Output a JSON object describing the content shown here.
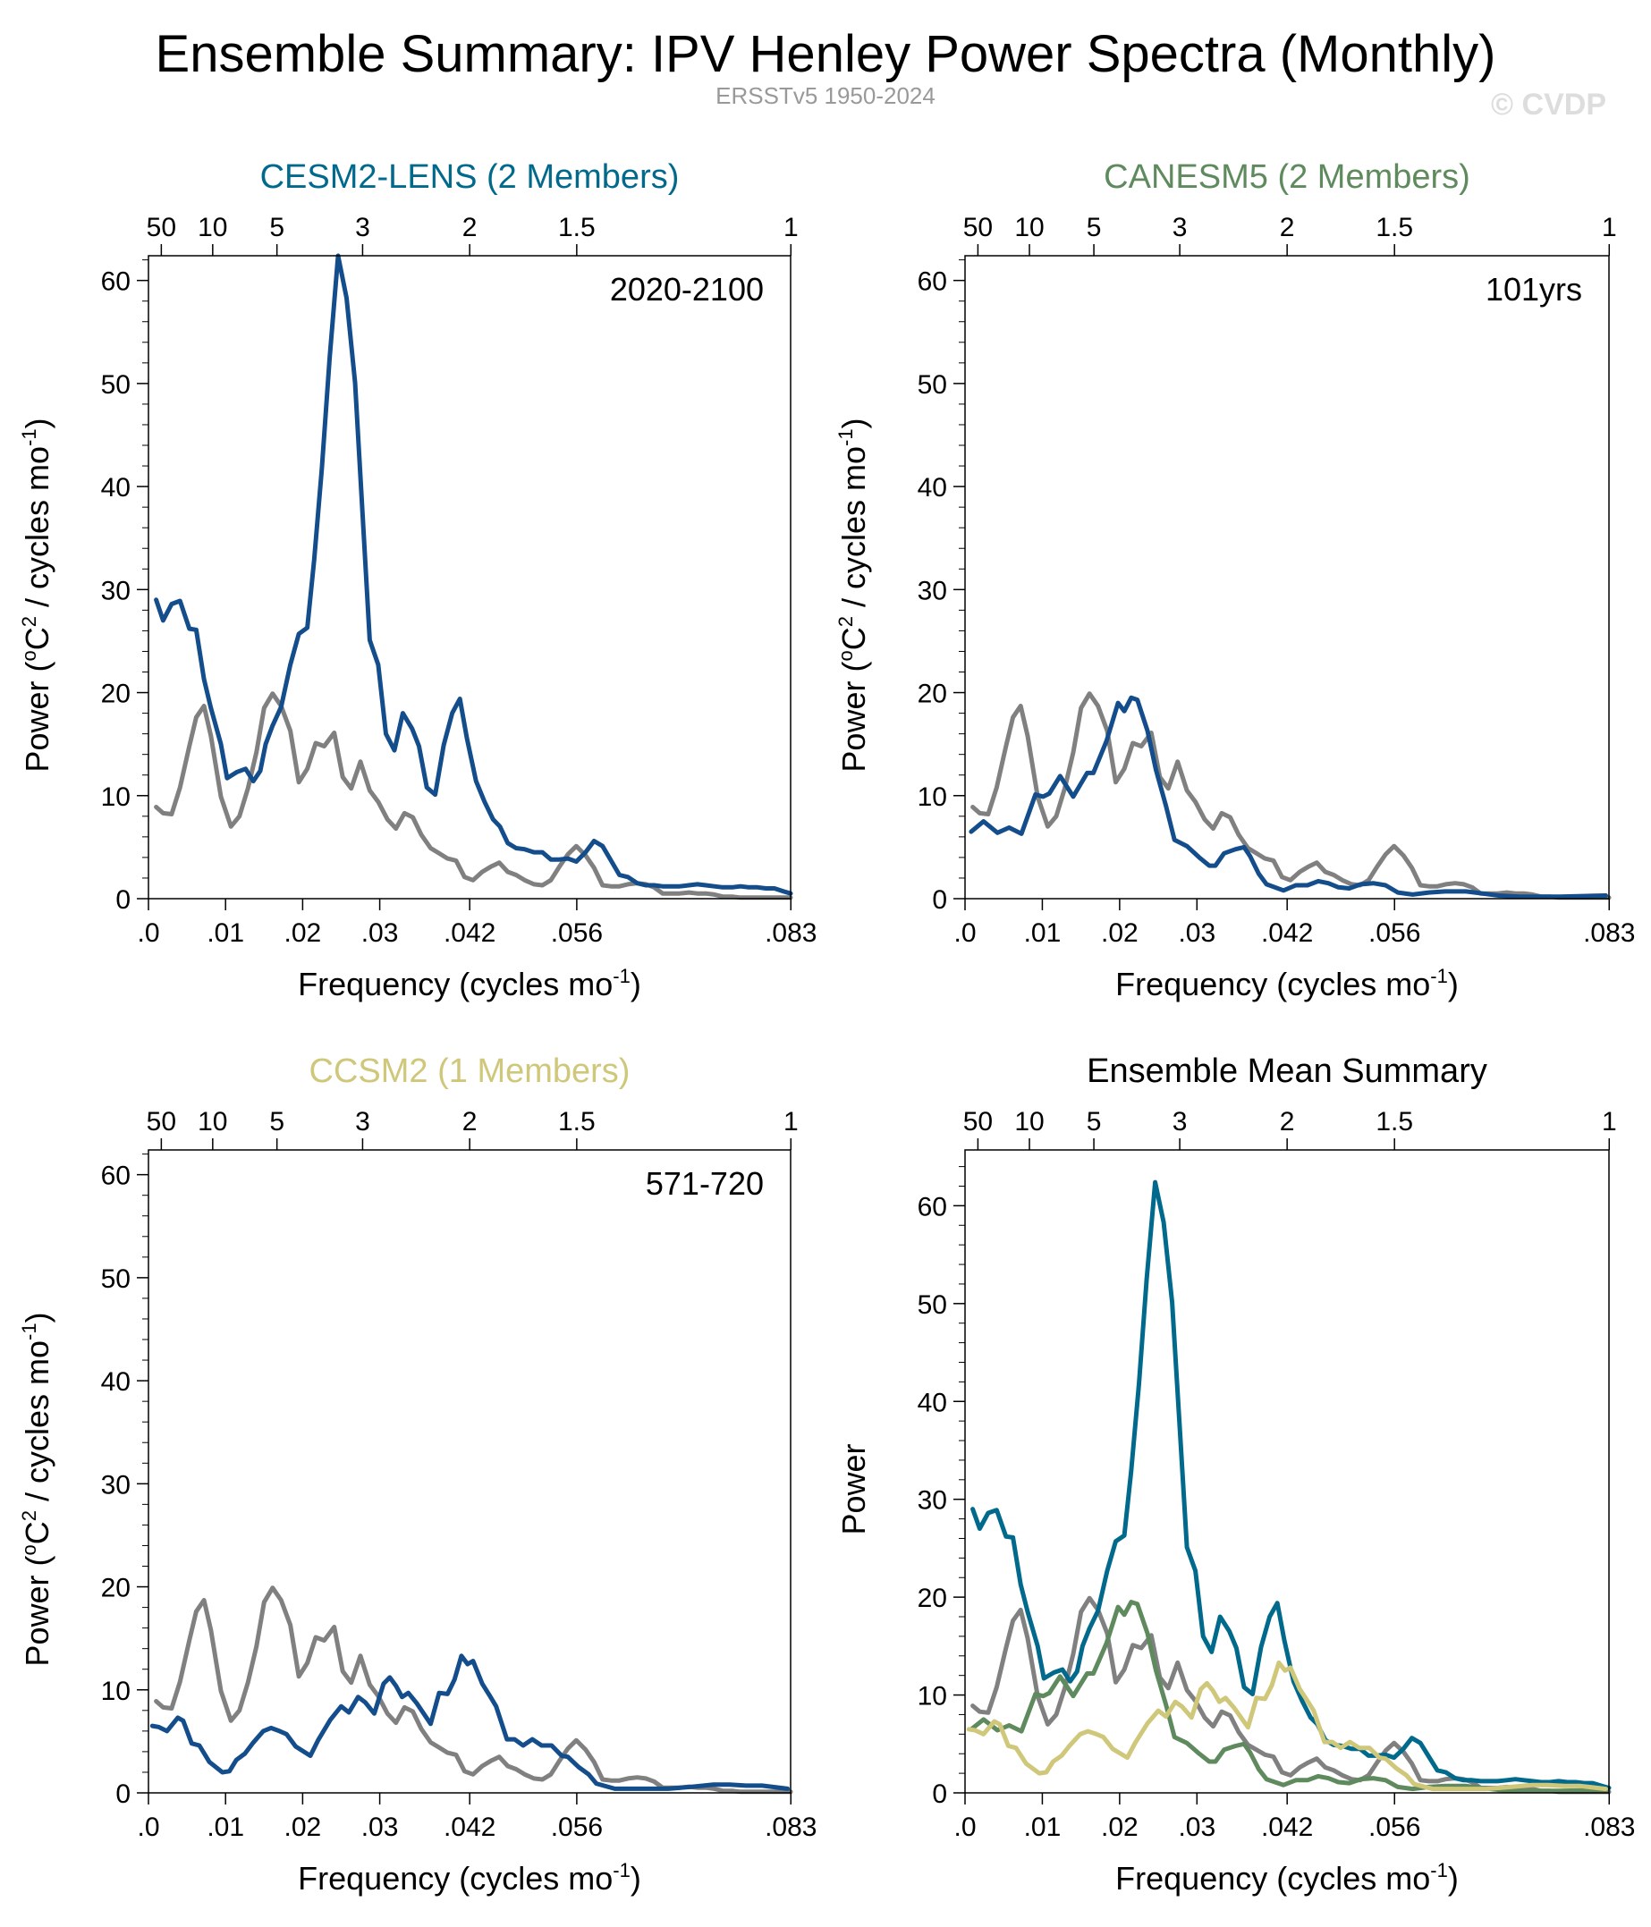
{
  "header": {
    "title": "Ensemble Summary: IPV Henley Power Spectra (Monthly)",
    "subtitle": "ERSSTv5 1950-2024",
    "watermark": "© CVDP"
  },
  "chart_data": {
    "type": "line",
    "series_data": {
      "observations": {
        "color": "#808080",
        "x": [
          0.001,
          0.0019,
          0.003,
          0.0041,
          0.0053,
          0.0062,
          0.0072,
          0.0081,
          0.0094,
          0.0107,
          0.0118,
          0.0129,
          0.014,
          0.015,
          0.0161,
          0.0172,
          0.0184,
          0.0195,
          0.0206,
          0.0217,
          0.0228,
          0.0241,
          0.0252,
          0.0263,
          0.0275,
          0.0287,
          0.0298,
          0.031,
          0.0321,
          0.0332,
          0.0343,
          0.0354,
          0.0366,
          0.0377,
          0.0388,
          0.0399,
          0.041,
          0.0421,
          0.0433,
          0.0444,
          0.0455,
          0.0466,
          0.0477,
          0.0488,
          0.05,
          0.0511,
          0.0522,
          0.0533,
          0.0544,
          0.0555,
          0.0567,
          0.0578,
          0.0589,
          0.06,
          0.0611,
          0.0622,
          0.0634,
          0.0645,
          0.0656,
          0.0667,
          0.0678,
          0.0689,
          0.0701,
          0.0712,
          0.0723,
          0.0734,
          0.0745,
          0.0757,
          0.0768,
          0.0779,
          0.079,
          0.0801,
          0.0812,
          0.0824,
          0.0833
        ],
        "y": [
          8.9,
          8.3,
          8.2,
          10.8,
          14.8,
          17.6,
          18.7,
          15.8,
          9.9,
          7.0,
          8.0,
          10.7,
          14.2,
          18.5,
          19.9,
          18.7,
          16.3,
          11.3,
          12.6,
          15.1,
          14.8,
          16.1,
          11.8,
          10.7,
          13.3,
          10.5,
          9.4,
          7.7,
          6.8,
          8.3,
          7.9,
          6.2,
          4.9,
          4.4,
          3.9,
          3.7,
          2.1,
          1.8,
          2.6,
          3.1,
          3.5,
          2.6,
          2.3,
          1.8,
          1.4,
          1.3,
          1.8,
          3.1,
          4.3,
          5.1,
          4.2,
          3.0,
          1.3,
          1.2,
          1.2,
          1.4,
          1.5,
          1.4,
          1.1,
          0.5,
          0.5,
          0.5,
          0.6,
          0.5,
          0.5,
          0.4,
          0.2,
          0.2,
          0.1,
          0.1,
          0.1,
          0.1,
          0.1,
          0.1,
          0.1
        ]
      },
      "cesm2_lens": {
        "x": [
          0.001,
          0.0019,
          0.003,
          0.0041,
          0.0053,
          0.0062,
          0.0072,
          0.0081,
          0.0094,
          0.0102,
          0.0115,
          0.0126,
          0.0136,
          0.0145,
          0.0152,
          0.0161,
          0.0172,
          0.0184,
          0.0195,
          0.0206,
          0.0215,
          0.0225,
          0.0235,
          0.0246,
          0.0257,
          0.0268,
          0.0278,
          0.0287,
          0.0298,
          0.0308,
          0.0319,
          0.033,
          0.0342,
          0.0351,
          0.0361,
          0.0372,
          0.0383,
          0.0394,
          0.0404,
          0.0413,
          0.0425,
          0.0436,
          0.0447,
          0.0456,
          0.0466,
          0.0477,
          0.0488,
          0.05,
          0.0511,
          0.0522,
          0.0533,
          0.0544,
          0.0555,
          0.0567,
          0.0578,
          0.0589,
          0.06,
          0.0611,
          0.0622,
          0.0634,
          0.0645,
          0.0656,
          0.0667,
          0.0678,
          0.0689,
          0.0701,
          0.0712,
          0.0723,
          0.0734,
          0.0745,
          0.0757,
          0.0768,
          0.0779,
          0.079,
          0.0801,
          0.0812,
          0.0824,
          0.0833
        ],
        "y": [
          29.0,
          27.0,
          28.6,
          28.9,
          26.2,
          26.1,
          21.3,
          18.5,
          15.0,
          11.7,
          12.3,
          12.6,
          11.4,
          12.4,
          15.0,
          16.8,
          18.6,
          22.7,
          25.7,
          26.3,
          32.9,
          41.8,
          52.5,
          62.4,
          58.3,
          50.1,
          37.0,
          25.1,
          22.7,
          16.0,
          14.4,
          18.0,
          16.5,
          14.8,
          10.8,
          10.1,
          14.9,
          18.0,
          19.4,
          15.6,
          11.4,
          9.4,
          7.7,
          7.0,
          5.4,
          4.9,
          4.8,
          4.5,
          4.5,
          3.8,
          3.8,
          3.9,
          3.6,
          4.5,
          5.6,
          5.1,
          3.7,
          2.3,
          2.1,
          1.5,
          1.3,
          1.3,
          1.2,
          1.2,
          1.2,
          1.3,
          1.4,
          1.3,
          1.2,
          1.1,
          1.1,
          1.2,
          1.1,
          1.1,
          1.0,
          1.0,
          0.7,
          0.5
        ]
      },
      "canesm5": {
        "x": [
          0.0008,
          0.0024,
          0.0042,
          0.0057,
          0.0073,
          0.0091,
          0.0101,
          0.0109,
          0.0123,
          0.014,
          0.0158,
          0.0166,
          0.0183,
          0.0198,
          0.0206,
          0.0215,
          0.0223,
          0.0236,
          0.0247,
          0.026,
          0.0271,
          0.0287,
          0.0303,
          0.0316,
          0.0324,
          0.0335,
          0.035,
          0.0361,
          0.0369,
          0.038,
          0.039,
          0.0412,
          0.0428,
          0.0443,
          0.0457,
          0.047,
          0.0483,
          0.0497,
          0.0512,
          0.0528,
          0.0544,
          0.056,
          0.0579,
          0.06,
          0.0621,
          0.0648,
          0.0669,
          0.069,
          0.0717,
          0.077,
          0.0829
        ],
        "y": [
          6.5,
          7.5,
          6.4,
          6.9,
          6.3,
          10.1,
          9.9,
          10.2,
          11.9,
          9.9,
          12.2,
          12.2,
          15.3,
          19.0,
          18.2,
          19.5,
          19.3,
          16.3,
          12.5,
          9.0,
          5.7,
          5.1,
          4.0,
          3.2,
          3.2,
          4.4,
          4.8,
          5.0,
          4.1,
          2.4,
          1.4,
          0.8,
          1.3,
          1.3,
          1.7,
          1.5,
          1.1,
          1.0,
          1.4,
          1.5,
          1.3,
          0.6,
          0.4,
          0.6,
          0.7,
          0.7,
          0.5,
          0.3,
          0.2,
          0.2,
          0.3
        ]
      },
      "ccsm2": {
        "x": [
          0.0005,
          0.0013,
          0.0024,
          0.0038,
          0.0045,
          0.0056,
          0.0066,
          0.0079,
          0.0096,
          0.0105,
          0.0114,
          0.0125,
          0.0135,
          0.0149,
          0.0159,
          0.017,
          0.0179,
          0.0191,
          0.021,
          0.022,
          0.0236,
          0.025,
          0.026,
          0.0272,
          0.0281,
          0.0293,
          0.0305,
          0.0313,
          0.0321,
          0.0329,
          0.0337,
          0.0348,
          0.0366,
          0.0377,
          0.0388,
          0.0397,
          0.0406,
          0.0414,
          0.0421,
          0.0433,
          0.0443,
          0.0451,
          0.0465,
          0.0475,
          0.0486,
          0.0498,
          0.051,
          0.0523,
          0.0536,
          0.0544,
          0.0558,
          0.0571,
          0.0581,
          0.0605,
          0.0637,
          0.0674,
          0.0706,
          0.0733,
          0.0754,
          0.0775,
          0.0796,
          0.0829
        ],
        "y": [
          6.5,
          6.4,
          6.0,
          7.3,
          7.0,
          4.8,
          4.6,
          3.0,
          2.0,
          2.1,
          3.2,
          3.8,
          4.8,
          6.0,
          6.3,
          6.0,
          5.7,
          4.5,
          3.6,
          5.1,
          7.1,
          8.4,
          7.8,
          9.3,
          8.8,
          7.7,
          10.6,
          11.2,
          10.4,
          9.3,
          9.7,
          8.7,
          6.7,
          9.7,
          9.6,
          11.0,
          13.3,
          12.5,
          12.8,
          10.6,
          9.4,
          8.4,
          5.2,
          5.2,
          4.6,
          5.2,
          4.6,
          4.6,
          3.6,
          3.5,
          2.5,
          1.8,
          0.9,
          0.4,
          0.4,
          0.4,
          0.6,
          0.8,
          0.8,
          0.7,
          0.7,
          0.4
        ]
      }
    },
    "panels": [
      {
        "title": "CESM2-LENS (2 Members)",
        "title_color": "#00698c",
        "annotation": "2020-2100",
        "ylabel": [
          {
            "t": "Power ("
          },
          {
            "t": "o",
            "sup": true
          },
          {
            "t": "C"
          },
          {
            "t": "2",
            "sup": true
          },
          {
            "t": " / cycles mo"
          },
          {
            "t": "-1",
            "sup": true
          },
          {
            "t": ")"
          }
        ],
        "xlabel": [
          {
            "t": "Frequency (cycles mo"
          },
          {
            "t": "-1",
            "sup": true
          },
          {
            "t": ")"
          }
        ],
        "xlim": [
          0,
          0.0833
        ],
        "ylim": [
          0,
          62.4
        ],
        "series": [
          {
            "ref": "observations",
            "color": "#808080"
          },
          {
            "ref": "cesm2_lens",
            "color": "#134d8b"
          }
        ]
      },
      {
        "title": "CANESM5 (2 Members)",
        "title_color": "#5e8a5e",
        "annotation": "101yrs",
        "ylabel": [
          {
            "t": "Power ("
          },
          {
            "t": "o",
            "sup": true
          },
          {
            "t": "C"
          },
          {
            "t": "2",
            "sup": true
          },
          {
            "t": " / cycles mo"
          },
          {
            "t": "-1",
            "sup": true
          },
          {
            "t": ")"
          }
        ],
        "xlabel": [
          {
            "t": "Frequency (cycles mo"
          },
          {
            "t": "-1",
            "sup": true
          },
          {
            "t": ")"
          }
        ],
        "xlim": [
          0,
          0.0833
        ],
        "ylim": [
          0,
          62.4
        ],
        "series": [
          {
            "ref": "observations",
            "color": "#808080"
          },
          {
            "ref": "canesm5",
            "color": "#134d8b"
          }
        ]
      },
      {
        "title": "CCSM2 (1 Members)",
        "title_color": "#cfc77a",
        "annotation": "571-720",
        "ylabel": [
          {
            "t": "Power ("
          },
          {
            "t": "o",
            "sup": true
          },
          {
            "t": "C"
          },
          {
            "t": "2",
            "sup": true
          },
          {
            "t": " / cycles mo"
          },
          {
            "t": "-1",
            "sup": true
          },
          {
            "t": ")"
          }
        ],
        "xlabel": [
          {
            "t": "Frequency (cycles mo"
          },
          {
            "t": "-1",
            "sup": true
          },
          {
            "t": ")"
          }
        ],
        "xlim": [
          0,
          0.0833
        ],
        "ylim": [
          0,
          62.4
        ],
        "series": [
          {
            "ref": "observations",
            "color": "#808080"
          },
          {
            "ref": "ccsm2",
            "color": "#134d8b"
          }
        ]
      },
      {
        "title": "Ensemble Mean Summary",
        "title_color": "#000000",
        "annotation": "",
        "ylabel": [
          {
            "t": "Power"
          }
        ],
        "xlabel": [
          {
            "t": "Frequency (cycles mo"
          },
          {
            "t": "-1",
            "sup": true
          },
          {
            "t": ")"
          }
        ],
        "xlim": [
          0,
          0.0833
        ],
        "ylim": [
          0,
          65.7
        ],
        "series": [
          {
            "ref": "observations",
            "color": "#808080"
          },
          {
            "ref": "cesm2_lens",
            "color": "#00698c"
          },
          {
            "ref": "canesm5",
            "color": "#5e8a5e"
          },
          {
            "ref": "ccsm2",
            "color": "#cfc77a"
          }
        ]
      }
    ],
    "yticks": [
      0,
      10,
      20,
      30,
      40,
      50,
      60
    ],
    "xticks": [
      {
        "v": 0,
        "label": ".0"
      },
      {
        "v": 0.01,
        "label": ".01"
      },
      {
        "v": 0.02,
        "label": ".02"
      },
      {
        "v": 0.03,
        "label": ".03"
      },
      {
        "v": 0.04167,
        "label": ".042"
      },
      {
        "v": 0.05556,
        "label": ".056"
      },
      {
        "v": 0.08333,
        "label": ".083"
      }
    ],
    "top_ticks": [
      {
        "v": 0.001667,
        "label": "50"
      },
      {
        "v": 0.008333,
        "label": "10"
      },
      {
        "v": 0.016667,
        "label": "5"
      },
      {
        "v": 0.027778,
        "label": "3"
      },
      {
        "v": 0.041667,
        "label": "2"
      },
      {
        "v": 0.055556,
        "label": "1.5"
      },
      {
        "v": 0.083333,
        "label": "1"
      }
    ],
    "grid": false
  }
}
